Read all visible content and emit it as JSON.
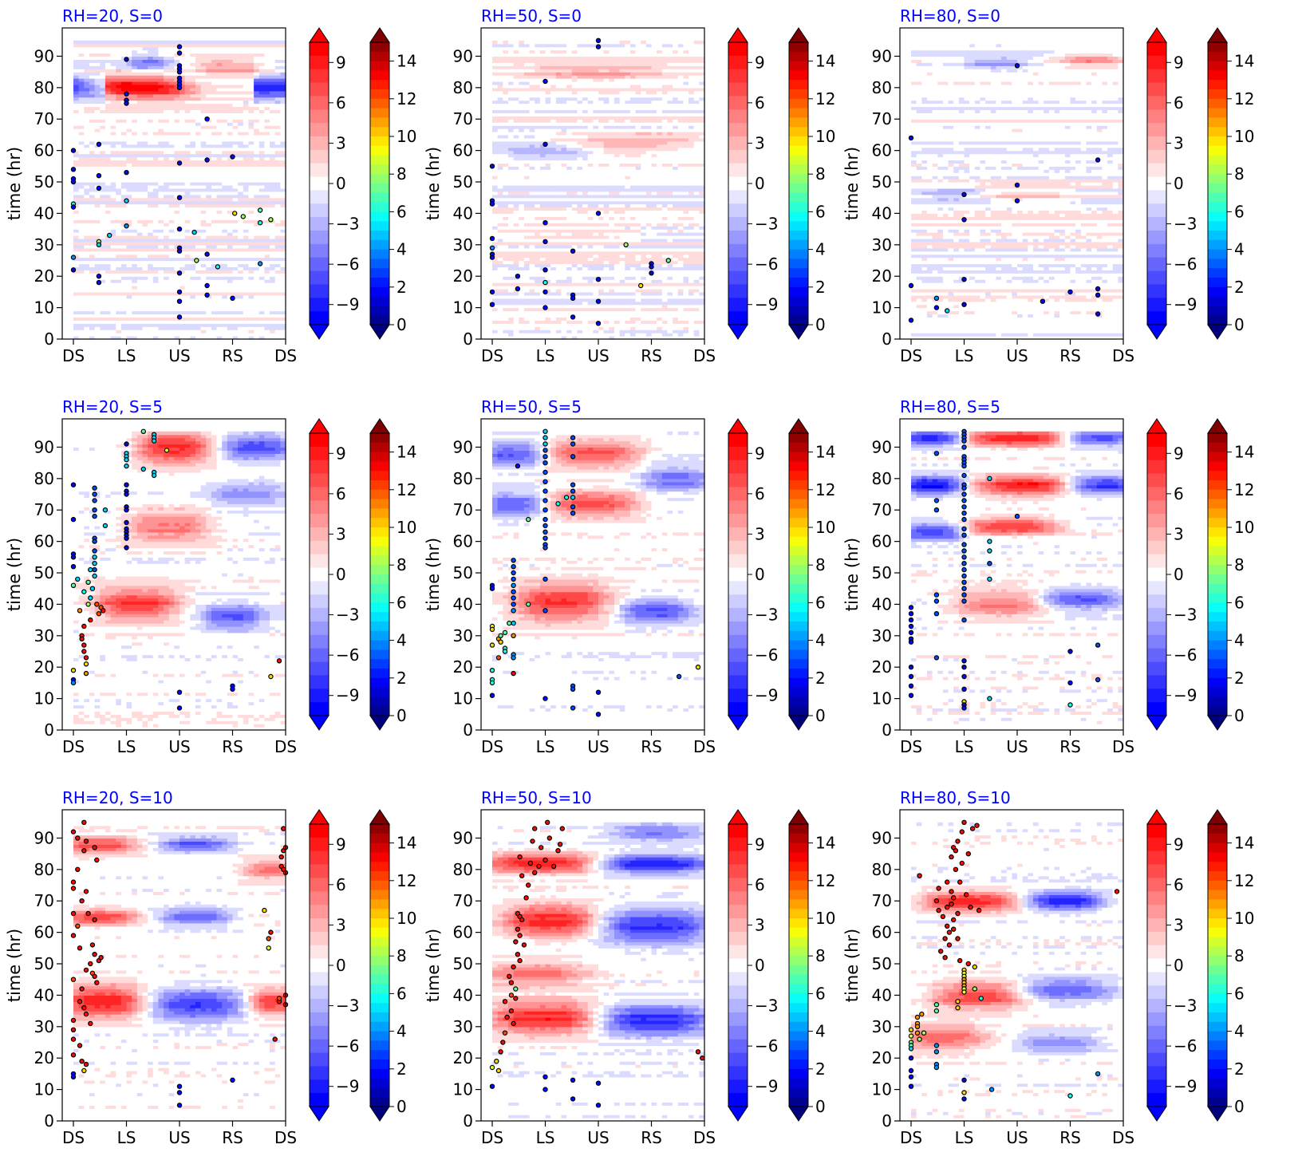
{
  "chart_data": {
    "type": "heatmap",
    "layout": "3x3 grid of Hovmöller panels (time vs. azimuthal position) with two colorbars each",
    "x_tick_labels": [
      "DS",
      "LS",
      "US",
      "RS",
      "DS"
    ],
    "ylabel": "time (hr)",
    "ylim": [
      0,
      99
    ],
    "yticks": [
      0,
      10,
      20,
      30,
      40,
      50,
      60,
      70,
      80,
      90
    ],
    "shading_colorbar": {
      "ticks": [
        "−9",
        "−6",
        "−3",
        "0",
        "3",
        "6",
        "9"
      ],
      "tick_values": [
        -9,
        -6,
        -3,
        0,
        3,
        6,
        9
      ],
      "range": [
        -10.5,
        10.5
      ],
      "extend": "both",
      "colormap": "bwr",
      "colors": {
        "low": "#0000ff",
        "mid": "#ffffff",
        "high": "#ff0000"
      }
    },
    "marker_colorbar": {
      "ticks": [
        "0",
        "2",
        "4",
        "6",
        "8",
        "10",
        "12",
        "14"
      ],
      "tick_values": [
        0,
        2,
        4,
        6,
        8,
        10,
        12,
        14
      ],
      "range": [
        0,
        15
      ],
      "extend": "both",
      "colormap": "jet"
    },
    "panels": [
      {
        "title": "RH=20, S=0",
        "rh": 20,
        "shear": 0
      },
      {
        "title": "RH=50, S=0",
        "rh": 50,
        "shear": 0
      },
      {
        "title": "RH=80, S=0",
        "rh": 80,
        "shear": 0
      },
      {
        "title": "RH=20, S=5",
        "rh": 20,
        "shear": 5
      },
      {
        "title": "RH=50, S=5",
        "rh": 50,
        "shear": 5
      },
      {
        "title": "RH=80, S=5",
        "rh": 80,
        "shear": 5
      },
      {
        "title": "RH=20, S=10",
        "rh": 20,
        "shear": 10
      },
      {
        "title": "RH=50, S=10",
        "rh": 50,
        "shear": 10
      },
      {
        "title": "RH=80, S=10",
        "rh": 80,
        "shear": 10
      }
    ]
  },
  "colors": {
    "title": "#0000ff",
    "axis": "#000000"
  }
}
